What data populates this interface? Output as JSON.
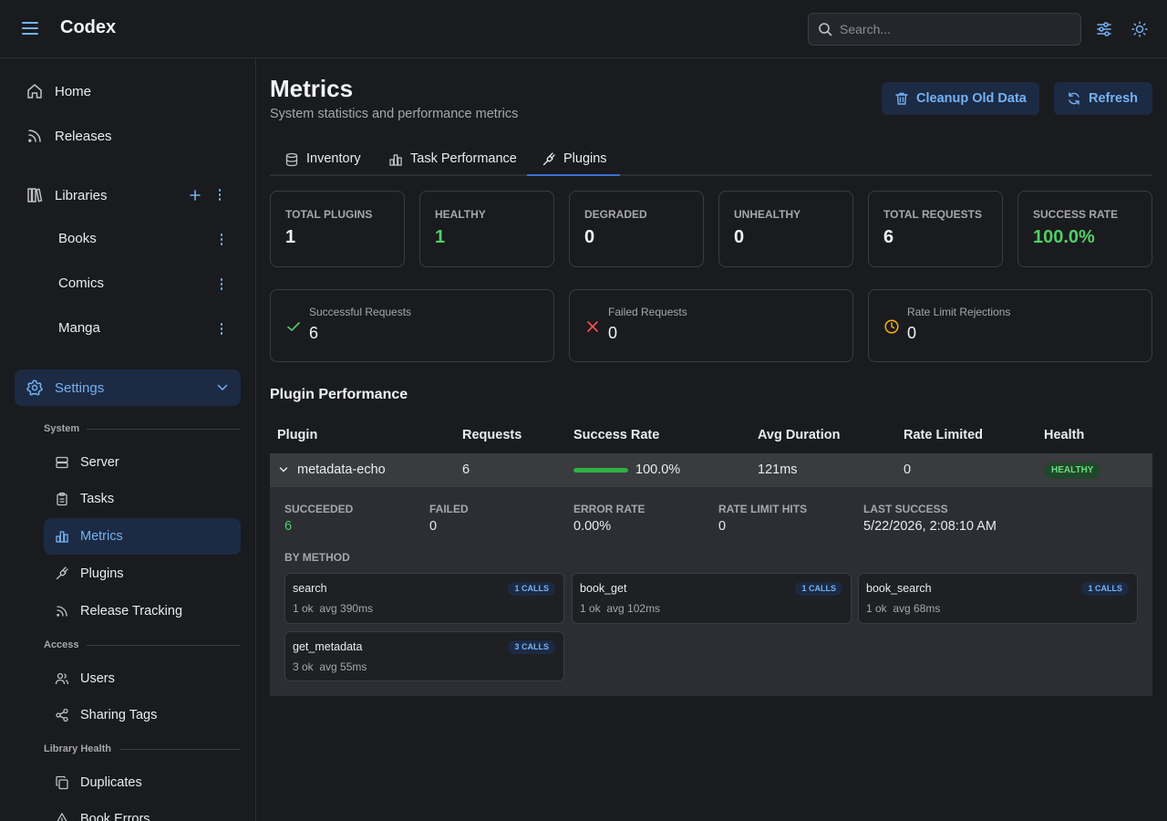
{
  "header": {
    "app_title": "Codex",
    "search_placeholder": "Search..."
  },
  "sidebar": {
    "home": "Home",
    "releases": "Releases",
    "libraries": "Libraries",
    "library_items": [
      "Books",
      "Comics",
      "Manga"
    ],
    "settings": "Settings",
    "sections": {
      "system": "System",
      "access": "Access",
      "library_health": "Library Health"
    },
    "system_items": [
      "Server",
      "Tasks",
      "Metrics",
      "Plugins",
      "Release Tracking"
    ],
    "access_items": [
      "Users",
      "Sharing Tags"
    ],
    "health_items": [
      "Duplicates",
      "Book Errors"
    ]
  },
  "page": {
    "title": "Metrics",
    "subtitle": "System statistics and performance metrics",
    "cleanup_label": "Cleanup Old Data",
    "refresh_label": "Refresh"
  },
  "tabs": [
    "Inventory",
    "Task Performance",
    "Plugins"
  ],
  "stats": [
    {
      "label": "TOTAL PLUGINS",
      "value": "1"
    },
    {
      "label": "HEALTHY",
      "value": "1"
    },
    {
      "label": "DEGRADED",
      "value": "0"
    },
    {
      "label": "UNHEALTHY",
      "value": "0"
    },
    {
      "label": "TOTAL REQUESTS",
      "value": "6"
    },
    {
      "label": "SUCCESS RATE",
      "value": "100.0%"
    }
  ],
  "request_stats": [
    {
      "label": "Successful Requests",
      "value": "6"
    },
    {
      "label": "Failed Requests",
      "value": "0"
    },
    {
      "label": "Rate Limit Rejections",
      "value": "0"
    }
  ],
  "performance": {
    "title": "Plugin Performance",
    "columns": [
      "Plugin",
      "Requests",
      "Success Rate",
      "Avg Duration",
      "Rate Limited",
      "Health"
    ],
    "row": {
      "plugin": "metadata-echo",
      "requests": "6",
      "success_rate": "100.0%",
      "success_fraction": 1.0,
      "avg_duration": "121ms",
      "rate_limited": "0",
      "health": "HEALTHY"
    },
    "details": [
      {
        "label": "SUCCEEDED",
        "value": "6"
      },
      {
        "label": "FAILED",
        "value": "0"
      },
      {
        "label": "ERROR RATE",
        "value": "0.00%"
      },
      {
        "label": "RATE LIMIT HITS",
        "value": "0"
      },
      {
        "label": "LAST SUCCESS",
        "value": "5/22/2026, 2:08:10 AM"
      }
    ],
    "by_method_label": "BY METHOD",
    "methods": [
      {
        "name": "search",
        "calls": "1 CALLS",
        "ok": "1 ok",
        "avg": "avg 390ms"
      },
      {
        "name": "book_get",
        "calls": "1 CALLS",
        "ok": "1 ok",
        "avg": "avg 102ms"
      },
      {
        "name": "book_search",
        "calls": "1 CALLS",
        "ok": "1 ok",
        "avg": "avg 68ms"
      },
      {
        "name": "get_metadata",
        "calls": "3 CALLS",
        "ok": "3 ok",
        "avg": "avg 55ms"
      }
    ]
  },
  "colors": {
    "accent": "#74b2f3",
    "success": "#51cf66",
    "error": "#fa5252",
    "warning": "#fab005",
    "background": "#1a1b1e"
  }
}
